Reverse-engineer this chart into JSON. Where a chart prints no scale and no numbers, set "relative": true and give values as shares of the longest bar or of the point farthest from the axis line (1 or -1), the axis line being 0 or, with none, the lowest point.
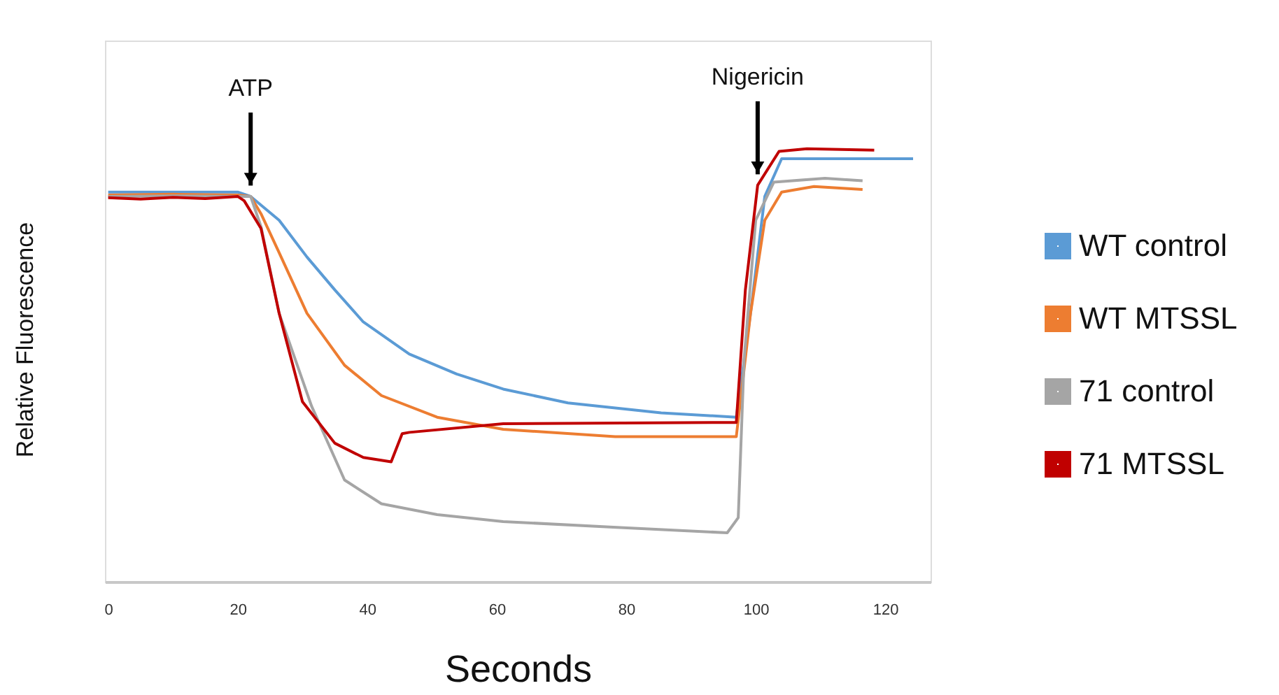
{
  "chart_data": {
    "type": "line",
    "relative": true,
    "xlabel": "Seconds",
    "ylabel": "Relative Fluorescence",
    "xlim": [
      -0.5,
      127
    ],
    "xticks": [
      0,
      20,
      40,
      60,
      80,
      100,
      120
    ],
    "grid": false,
    "legend": "right",
    "tick_labels": "x",
    "line_style": "solid",
    "marker": "none",
    "annotations": [
      {
        "text": "ATP",
        "x": 22,
        "y": 0.89
      },
      {
        "text": "Nigericin",
        "x": 100.3,
        "y": 0.916
      }
    ],
    "series": [
      {
        "name": "WT control",
        "color": "#5b9bd5",
        "x": [
          0,
          10,
          20,
          22,
          26.4,
          30.7,
          35,
          39.4,
          46.5,
          53.8,
          61,
          71,
          85.4,
          97,
          99.2,
          101.4,
          104,
          114,
          124.3
        ],
        "values": [
          0.9,
          0.9,
          0.9,
          0.89,
          0.835,
          0.75,
          0.674,
          0.6,
          0.526,
          0.48,
          0.445,
          0.413,
          0.39,
          0.38,
          0.62,
          0.89,
          0.977,
          0.977,
          0.977
        ]
      },
      {
        "name": "WT MTSSL",
        "color": "#ed7d31",
        "x": [
          0,
          10,
          20,
          22,
          23.6,
          26.4,
          30.7,
          36.5,
          42.2,
          50.8,
          61,
          78.3,
          97,
          99.2,
          101.4,
          104,
          109,
          116.5
        ],
        "values": [
          0.893,
          0.895,
          0.893,
          0.89,
          0.85,
          0.76,
          0.62,
          0.5,
          0.43,
          0.38,
          0.352,
          0.335,
          0.335,
          0.62,
          0.835,
          0.9,
          0.913,
          0.906
        ]
      },
      {
        "name": "71 control",
        "color": "#a5a5a5",
        "x": [
          0,
          10,
          20,
          22,
          23.6,
          26.4,
          31.4,
          36.5,
          42.2,
          50.8,
          61,
          78,
          95.6,
          97.3,
          98.2,
          100,
          102.8,
          110.7,
          116.5
        ],
        "values": [
          0.89,
          0.891,
          0.89,
          0.89,
          0.82,
          0.62,
          0.406,
          0.235,
          0.18,
          0.155,
          0.139,
          0.126,
          0.113,
          0.148,
          0.513,
          0.835,
          0.923,
          0.932,
          0.926
        ]
      },
      {
        "name": "71 MTSSL",
        "color": "#c00000",
        "x": [
          0,
          5,
          10,
          15,
          20,
          21,
          23.6,
          26.4,
          30,
          35,
          39.4,
          43.7,
          45.4,
          46.5,
          61,
          97,
          98.4,
          100.3,
          103.6,
          107.9,
          118.3
        ],
        "values": [
          0.887,
          0.884,
          0.888,
          0.885,
          0.89,
          0.88,
          0.816,
          0.62,
          0.416,
          0.32,
          0.287,
          0.277,
          0.342,
          0.345,
          0.365,
          0.368,
          0.674,
          0.916,
          0.994,
          1.0,
          0.997
        ]
      }
    ]
  }
}
